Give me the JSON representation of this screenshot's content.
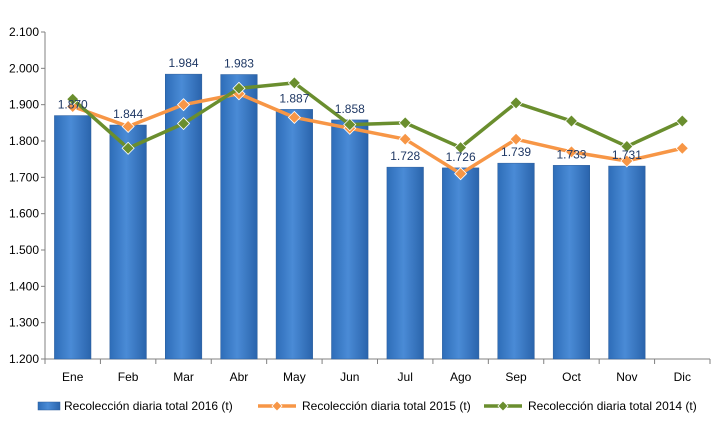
{
  "chart_data": {
    "type": "bar",
    "categories": [
      "Ene",
      "Feb",
      "Mar",
      "Abr",
      "May",
      "Jun",
      "Jul",
      "Ago",
      "Sep",
      "Oct",
      "Nov",
      "Dic"
    ],
    "ylim": [
      1200,
      2100
    ],
    "yticks": [
      1200,
      1300,
      1400,
      1500,
      1600,
      1700,
      1800,
      1900,
      2000,
      2100
    ],
    "ytick_labels": [
      "1.200",
      "1.300",
      "1.400",
      "1.500",
      "1.600",
      "1.700",
      "1.800",
      "1.900",
      "2.000",
      "2.100"
    ],
    "grid": false,
    "legend_position": "bottom",
    "series": [
      {
        "name": "Recolección diaria total 2016 (t)",
        "type": "bar",
        "color": "#4A8BD6",
        "values": [
          1870,
          1844,
          1984,
          1983,
          1887,
          1858,
          1728,
          1726,
          1739,
          1733,
          1731,
          null
        ],
        "labels": [
          "1.870",
          "1.844",
          "1.984",
          "1.983",
          "1.887",
          "1.858",
          "1.728",
          "1.726",
          "1.739",
          "1.733",
          "1.731",
          ""
        ]
      },
      {
        "name": "Recolección diaria total 2015 (t)",
        "type": "line",
        "color": "#F79646",
        "values": [
          1895,
          1840,
          1900,
          1930,
          1865,
          1835,
          1805,
          1710,
          1805,
          1770,
          1745,
          1780
        ]
      },
      {
        "name": "Recolección diaria total 2014 (t)",
        "type": "line",
        "color": "#6A8E2E",
        "values": [
          1915,
          1780,
          1848,
          1945,
          1960,
          1845,
          1850,
          1782,
          1905,
          1855,
          1785,
          1855
        ]
      }
    ]
  }
}
